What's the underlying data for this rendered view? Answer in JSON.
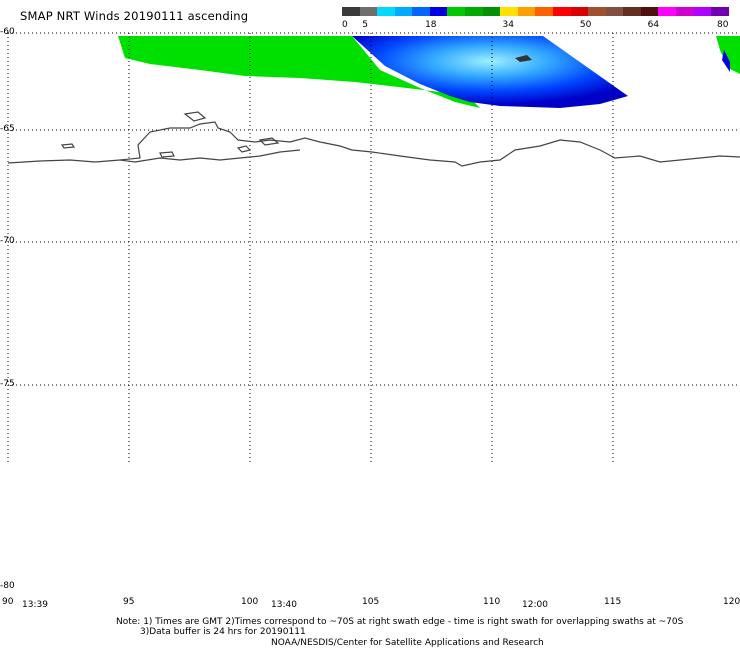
{
  "title": "SMAP NRT Winds 20190111 ascending",
  "colorbar": {
    "segments": [
      "#3a3a3a",
      "#6e6e6e",
      "#00d8ff",
      "#00aaff",
      "#0066ff",
      "#0000e0",
      "#00c800",
      "#00aa00",
      "#009000",
      "#ffe000",
      "#ffa000",
      "#ff6000",
      "#ff0000",
      "#d80000",
      "#a05030",
      "#805040",
      "#603020",
      "#501010",
      "#ff00ff",
      "#d000d0",
      "#b000ff",
      "#7000b0"
    ],
    "labels": [
      {
        "text": "0",
        "value": 0
      },
      {
        "text": "5",
        "value": 5
      },
      {
        "text": "18",
        "value": 18
      },
      {
        "text": "34",
        "value": 34
      },
      {
        "text": "50",
        "value": 50
      },
      {
        "text": "64",
        "value": 64
      },
      {
        "text": "80",
        "value": 80
      }
    ]
  },
  "lat_labels": [
    "-60",
    "-65",
    "-70",
    "-75",
    "-80"
  ],
  "lon_labels": [
    "90",
    "95",
    "100",
    "105",
    "110",
    "115",
    "120"
  ],
  "times": [
    "13:39",
    "13:40",
    "12:00"
  ],
  "notes": {
    "line1": "Note: 1) Times are GMT 2)Times correspond to ~70S at right swath edge - time is right swath for overlapping swaths at ~70S",
    "line2": "3)Data buffer is 24 hrs for 20190111",
    "line3": "NOAA/NESDIS/Center for Satellite Applications and Research"
  },
  "colors": {
    "low_wind_green": "#00e000",
    "swath_blue": "#0033ff",
    "swath_cyan": "#00ccff",
    "coast": "#444444"
  }
}
